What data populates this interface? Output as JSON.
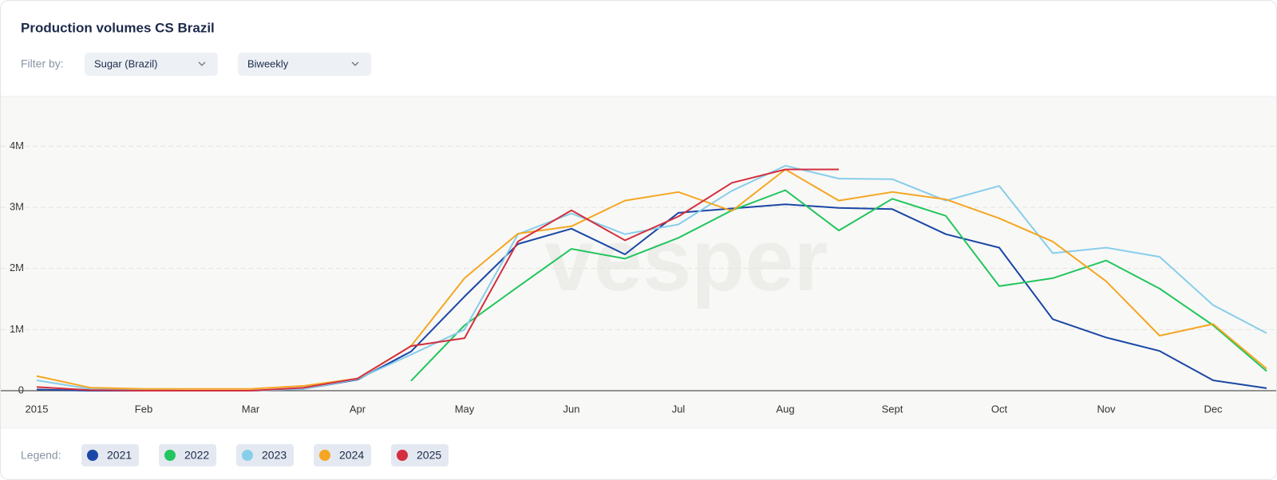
{
  "header": {
    "title": "Production volumes CS Brazil"
  },
  "filters": {
    "label": "Filter by:",
    "options": [
      "Sugar (Brazil)",
      "Biweekly"
    ]
  },
  "legend_label": "Legend:",
  "chart_data": {
    "type": "line",
    "watermark": "vesper",
    "categories": [
      "2015",
      null,
      "Feb",
      null,
      "Mar",
      null,
      "Apr",
      null,
      "May",
      null,
      "Jun",
      null,
      "Jul",
      null,
      "Aug",
      null,
      "Sept",
      null,
      "Oct",
      null,
      "Nov",
      null,
      "Dec",
      null
    ],
    "ylim": [
      0,
      4500000
    ],
    "yticks": [
      0,
      {
        "value": 1000000,
        "label": "1M"
      },
      {
        "value": 2000000,
        "label": "2M"
      },
      {
        "value": 3000000,
        "label": "3M"
      },
      {
        "value": 4000000,
        "label": "4M"
      }
    ],
    "grid": true,
    "series": [
      {
        "name": "2021",
        "color": "#1a47a6",
        "values": [
          20000,
          0,
          0,
          0,
          0,
          30000,
          180000,
          640000,
          1540000,
          2400000,
          2650000,
          2230000,
          2910000,
          2980000,
          3050000,
          2990000,
          2970000,
          2560000,
          2340000,
          1170000,
          870000,
          650000,
          170000,
          40000
        ]
      },
      {
        "name": "2022",
        "color": "#22c55e",
        "values": [
          null,
          null,
          null,
          null,
          null,
          null,
          null,
          160000,
          1070000,
          1700000,
          2320000,
          2160000,
          2500000,
          2950000,
          3280000,
          2620000,
          3140000,
          2860000,
          1710000,
          1840000,
          2130000,
          1670000,
          1070000,
          320000
        ]
      },
      {
        "name": "2023",
        "color": "#87ceeb",
        "values": [
          170000,
          30000,
          10000,
          0,
          0,
          30000,
          190000,
          590000,
          1000000,
          2560000,
          2900000,
          2560000,
          2720000,
          3270000,
          3680000,
          3470000,
          3460000,
          3110000,
          3350000,
          2250000,
          2340000,
          2190000,
          1400000,
          940000
        ]
      },
      {
        "name": "2024",
        "color": "#f5a623",
        "values": [
          240000,
          50000,
          30000,
          30000,
          30000,
          80000,
          200000,
          730000,
          1840000,
          2570000,
          2690000,
          3110000,
          3250000,
          2940000,
          3620000,
          3110000,
          3250000,
          3130000,
          2820000,
          2440000,
          1790000,
          900000,
          1090000,
          360000
        ]
      },
      {
        "name": "2025",
        "color": "#d32f3f",
        "values": [
          60000,
          10000,
          0,
          0,
          0,
          50000,
          200000,
          730000,
          860000,
          2440000,
          2950000,
          2460000,
          2850000,
          3400000,
          3620000,
          3620000,
          null,
          null,
          null,
          null,
          null,
          null,
          null,
          null
        ]
      }
    ]
  }
}
